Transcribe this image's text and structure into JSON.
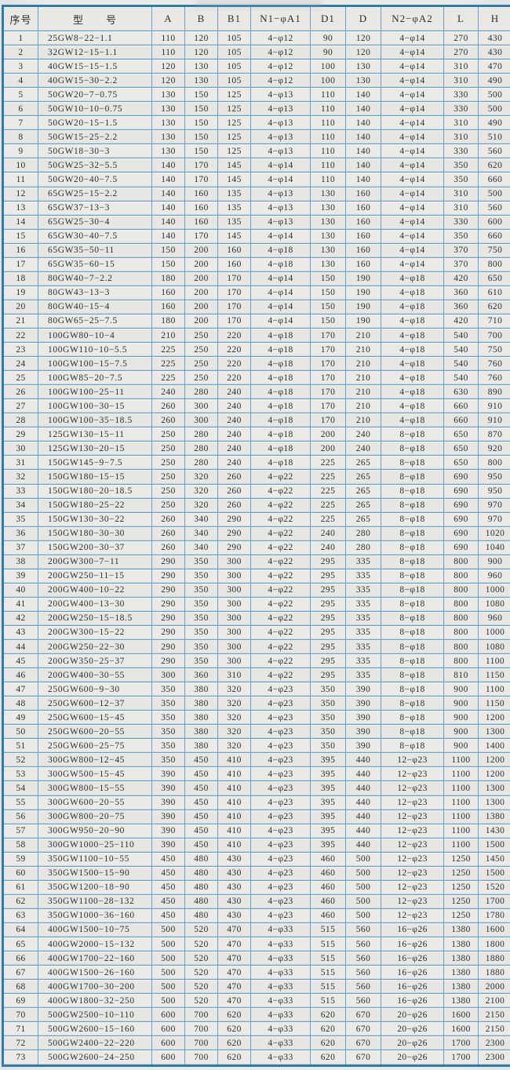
{
  "table": {
    "headers": [
      "序号",
      "型　　号",
      "A",
      "B",
      "B1",
      "N1−φA1",
      "D1",
      "D",
      "N2−φA2",
      "L",
      "H"
    ],
    "rows": [
      [
        "1",
        "25GW8−22−1.1",
        "110",
        "120",
        "105",
        "4−φ12",
        "90",
        "120",
        "4−φ14",
        "270",
        "430"
      ],
      [
        "2",
        "32GW12−15−1.1",
        "110",
        "120",
        "105",
        "4−φ12",
        "90",
        "120",
        "4−φ14",
        "270",
        "430"
      ],
      [
        "3",
        "40GW15−15−1.5",
        "120",
        "130",
        "105",
        "4−φ12",
        "100",
        "130",
        "4−φ14",
        "310",
        "470"
      ],
      [
        "4",
        "40GW15−30−2.2",
        "120",
        "130",
        "105",
        "4−φ12",
        "100",
        "130",
        "4−φ14",
        "310",
        "490"
      ],
      [
        "5",
        "50GW20−7−0.75",
        "130",
        "150",
        "125",
        "4−φ13",
        "110",
        "140",
        "4−φ14",
        "330",
        "500"
      ],
      [
        "6",
        "50GW10−10−0.75",
        "130",
        "150",
        "125",
        "4−φ13",
        "110",
        "140",
        "4−φ14",
        "330",
        "500"
      ],
      [
        "7",
        "50GW20−15−1.5",
        "130",
        "150",
        "125",
        "4−φ13",
        "110",
        "140",
        "4−φ14",
        "310",
        "490"
      ],
      [
        "8",
        "50GW15−25−2.2",
        "130",
        "150",
        "125",
        "4−φ13",
        "110",
        "140",
        "4−φ14",
        "310",
        "510"
      ],
      [
        "9",
        "50GW18−30−3",
        "130",
        "150",
        "125",
        "4−φ13",
        "110",
        "140",
        "4−φ14",
        "330",
        "560"
      ],
      [
        "10",
        "50GW25−32−5.5",
        "140",
        "170",
        "145",
        "4−φ14",
        "110",
        "140",
        "4−φ14",
        "350",
        "620"
      ],
      [
        "11",
        "50GW20−40−7.5",
        "140",
        "170",
        "145",
        "4−φ14",
        "110",
        "140",
        "4−φ14",
        "350",
        "660"
      ],
      [
        "12",
        "65GW25−15−2.2",
        "140",
        "160",
        "135",
        "4−φ13",
        "130",
        "160",
        "4−φ14",
        "310",
        "500"
      ],
      [
        "13",
        "65GW37−13−3",
        "140",
        "160",
        "135",
        "4−φ13",
        "130",
        "160",
        "4−φ14",
        "310",
        "560"
      ],
      [
        "14",
        "65GW25−30−4",
        "140",
        "160",
        "135",
        "4−φ13",
        "130",
        "160",
        "4−φ14",
        "330",
        "600"
      ],
      [
        "15",
        "65GW30−40−7.5",
        "140",
        "170",
        "145",
        "4−φ14",
        "130",
        "160",
        "4−φ14",
        "350",
        "660"
      ],
      [
        "16",
        "65GW35−50−11",
        "150",
        "200",
        "160",
        "4−φ18",
        "130",
        "160",
        "4−φ14",
        "370",
        "750"
      ],
      [
        "17",
        "65GW35−60−15",
        "150",
        "200",
        "160",
        "4−φ18",
        "130",
        "160",
        "4−φ14",
        "370",
        "800"
      ],
      [
        "18",
        "80GW40−7−2.2",
        "180",
        "200",
        "170",
        "4−φ14",
        "150",
        "190",
        "4−φ18",
        "420",
        "650"
      ],
      [
        "19",
        "80GW43−13−3",
        "160",
        "200",
        "170",
        "4−φ14",
        "150",
        "190",
        "4−φ18",
        "360",
        "610"
      ],
      [
        "20",
        "80GW40−15−4",
        "160",
        "200",
        "170",
        "4−φ14",
        "150",
        "190",
        "4−φ18",
        "360",
        "620"
      ],
      [
        "21",
        "80GW65−25−7.5",
        "180",
        "200",
        "170",
        "4−φ14",
        "150",
        "190",
        "4−φ18",
        "420",
        "710"
      ],
      [
        "22",
        "100GW80−10−4",
        "210",
        "250",
        "220",
        "4−φ18",
        "170",
        "210",
        "4−φ18",
        "540",
        "700"
      ],
      [
        "23",
        "100GW110−10−5.5",
        "225",
        "250",
        "220",
        "4−φ18",
        "170",
        "210",
        "4−φ18",
        "540",
        "750"
      ],
      [
        "24",
        "100GW100−15−7.5",
        "225",
        "250",
        "220",
        "4−φ18",
        "170",
        "210",
        "4−φ18",
        "540",
        "760"
      ],
      [
        "25",
        "100GW85−20−7.5",
        "225",
        "250",
        "220",
        "4−φ18",
        "170",
        "210",
        "4−φ18",
        "540",
        "760"
      ],
      [
        "26",
        "100GW100−25−11",
        "240",
        "280",
        "240",
        "4−φ18",
        "170",
        "210",
        "4−φ18",
        "630",
        "890"
      ],
      [
        "27",
        "100GW100−30−15",
        "260",
        "300",
        "240",
        "4−φ18",
        "170",
        "210",
        "4−φ18",
        "660",
        "910"
      ],
      [
        "28",
        "100GW100−35−18.5",
        "260",
        "300",
        "240",
        "4−φ18",
        "170",
        "210",
        "4−φ18",
        "660",
        "910"
      ],
      [
        "29",
        "125GW130−15−11",
        "250",
        "280",
        "240",
        "4−φ18",
        "200",
        "240",
        "8−φ18",
        "650",
        "870"
      ],
      [
        "30",
        "125GW130−20−15",
        "250",
        "280",
        "240",
        "4−φ18",
        "200",
        "240",
        "8−φ18",
        "650",
        "920"
      ],
      [
        "31",
        "150GW145−9−7.5",
        "250",
        "280",
        "240",
        "4−φ18",
        "225",
        "265",
        "8−φ18",
        "650",
        "800"
      ],
      [
        "32",
        "150GW180−15−15",
        "250",
        "320",
        "260",
        "4−φ22",
        "225",
        "265",
        "8−φ18",
        "690",
        "950"
      ],
      [
        "33",
        "150GW180−20−18.5",
        "250",
        "320",
        "260",
        "4−φ22",
        "225",
        "265",
        "8−φ18",
        "690",
        "950"
      ],
      [
        "34",
        "150GW180−25−22",
        "250",
        "320",
        "260",
        "4−φ22",
        "225",
        "265",
        "8−φ18",
        "690",
        "970"
      ],
      [
        "35",
        "150GW130−30−22",
        "260",
        "340",
        "290",
        "4−φ22",
        "225",
        "265",
        "8−φ18",
        "690",
        "970"
      ],
      [
        "36",
        "150GW180−30−30",
        "260",
        "340",
        "290",
        "4−φ22",
        "240",
        "280",
        "8−φ18",
        "690",
        "1020"
      ],
      [
        "37",
        "150GW200−30−37",
        "260",
        "340",
        "290",
        "4−φ22",
        "240",
        "280",
        "8−φ18",
        "690",
        "1040"
      ],
      [
        "38",
        "200GW300−7−11",
        "290",
        "350",
        "300",
        "4−φ22",
        "295",
        "335",
        "8−φ18",
        "800",
        "900"
      ],
      [
        "39",
        "200GW250−11−15",
        "290",
        "350",
        "300",
        "4−φ22",
        "295",
        "335",
        "8−φ18",
        "800",
        "960"
      ],
      [
        "40",
        "200GW400−10−22",
        "290",
        "350",
        "300",
        "4−φ22",
        "295",
        "335",
        "8−φ18",
        "800",
        "1000"
      ],
      [
        "41",
        "200GW400−13−30",
        "290",
        "350",
        "300",
        "4−φ22",
        "295",
        "335",
        "8−φ18",
        "800",
        "1080"
      ],
      [
        "42",
        "200GW250−15−18.5",
        "290",
        "350",
        "300",
        "4−φ22",
        "295",
        "335",
        "8−φ18",
        "800",
        "960"
      ],
      [
        "43",
        "200GW300−15−22",
        "290",
        "350",
        "300",
        "4−φ22",
        "295",
        "335",
        "8−φ18",
        "800",
        "1000"
      ],
      [
        "44",
        "200GW250−22−30",
        "290",
        "350",
        "300",
        "4−φ22",
        "295",
        "335",
        "8−φ18",
        "800",
        "1080"
      ],
      [
        "45",
        "200GW350−25−37",
        "290",
        "350",
        "300",
        "4−φ22",
        "295",
        "335",
        "8−φ18",
        "800",
        "1100"
      ],
      [
        "46",
        "200GW400−30−55",
        "300",
        "360",
        "310",
        "4−φ22",
        "295",
        "335",
        "8−φ18",
        "810",
        "1150"
      ],
      [
        "47",
        "250GW600−9−30",
        "350",
        "380",
        "320",
        "4−φ23",
        "350",
        "390",
        "8−φ18",
        "900",
        "1100"
      ],
      [
        "48",
        "250GW600−12−37",
        "350",
        "380",
        "320",
        "4−φ23",
        "350",
        "390",
        "8−φ18",
        "900",
        "1150"
      ],
      [
        "49",
        "250GW600−15−45",
        "350",
        "380",
        "320",
        "4−φ23",
        "350",
        "390",
        "8−φ18",
        "900",
        "1200"
      ],
      [
        "50",
        "250GW600−20−55",
        "350",
        "380",
        "320",
        "4−φ23",
        "350",
        "390",
        "8−φ18",
        "900",
        "1300"
      ],
      [
        "51",
        "250GW600−25−75",
        "350",
        "380",
        "320",
        "4−φ23",
        "350",
        "390",
        "8−φ18",
        "900",
        "1400"
      ],
      [
        "52",
        "300GW800−12−45",
        "350",
        "450",
        "410",
        "4−φ23",
        "395",
        "440",
        "12−φ23",
        "1100",
        "1200"
      ],
      [
        "53",
        "300GW500−15−45",
        "390",
        "450",
        "410",
        "4−φ23",
        "395",
        "440",
        "12−φ23",
        "1100",
        "1200"
      ],
      [
        "54",
        "300GW800−15−55",
        "390",
        "450",
        "410",
        "4−φ23",
        "395",
        "440",
        "12−φ23",
        "1100",
        "1300"
      ],
      [
        "55",
        "300GW600−20−55",
        "390",
        "450",
        "410",
        "4−φ23",
        "395",
        "440",
        "12−φ23",
        "1100",
        "1300"
      ],
      [
        "56",
        "300GW800−20−75",
        "390",
        "450",
        "410",
        "4−φ23",
        "395",
        "440",
        "12−φ23",
        "1100",
        "1380"
      ],
      [
        "57",
        "300GW950−20−90",
        "390",
        "450",
        "410",
        "4−φ23",
        "395",
        "440",
        "12−φ23",
        "1100",
        "1430"
      ],
      [
        "58",
        "300GW1000−25−110",
        "390",
        "450",
        "410",
        "4−φ23",
        "395",
        "440",
        "12−φ23",
        "1100",
        "1500"
      ],
      [
        "59",
        "350GW1100−10−55",
        "450",
        "480",
        "430",
        "4−φ23",
        "460",
        "500",
        "12−φ23",
        "1250",
        "1450"
      ],
      [
        "60",
        "350GW1500−15−90",
        "450",
        "480",
        "430",
        "4−φ23",
        "460",
        "500",
        "12−φ23",
        "1250",
        "1500"
      ],
      [
        "61",
        "350GW1200−18−90",
        "450",
        "480",
        "430",
        "4−φ23",
        "460",
        "500",
        "12−φ23",
        "1250",
        "1520"
      ],
      [
        "62",
        "350GW1100−28−132",
        "450",
        "480",
        "430",
        "4−φ23",
        "460",
        "500",
        "12−φ23",
        "1250",
        "1700"
      ],
      [
        "63",
        "350GW1000−36−160",
        "450",
        "480",
        "430",
        "4−φ23",
        "460",
        "500",
        "12−φ23",
        "1250",
        "1780"
      ],
      [
        "64",
        "400GW1500−10−75",
        "500",
        "520",
        "470",
        "4−φ33",
        "515",
        "560",
        "16−φ26",
        "1380",
        "1600"
      ],
      [
        "65",
        "400GW2000−15−132",
        "500",
        "520",
        "470",
        "4−φ33",
        "515",
        "560",
        "16−φ26",
        "1380",
        "1800"
      ],
      [
        "66",
        "400GW1700−22−160",
        "500",
        "520",
        "470",
        "4−φ33",
        "515",
        "560",
        "16−φ26",
        "1380",
        "1880"
      ],
      [
        "67",
        "400GW1500−26−160",
        "500",
        "520",
        "470",
        "4−φ33",
        "515",
        "560",
        "16−φ26",
        "1380",
        "1880"
      ],
      [
        "68",
        "400GW1700−30−200",
        "500",
        "520",
        "470",
        "4−φ33",
        "515",
        "560",
        "16−φ26",
        "1380",
        "2000"
      ],
      [
        "69",
        "400GW1800−32−250",
        "500",
        "520",
        "470",
        "4−φ33",
        "515",
        "560",
        "16−φ26",
        "1380",
        "2100"
      ],
      [
        "70",
        "500GW2500−10−110",
        "600",
        "700",
        "620",
        "4−φ33",
        "620",
        "670",
        "20−φ26",
        "1600",
        "2150"
      ],
      [
        "71",
        "500GW2600−15−160",
        "600",
        "700",
        "620",
        "4−φ33",
        "620",
        "670",
        "20−φ26",
        "1600",
        "2150"
      ],
      [
        "72",
        "500GW2400−22−220",
        "600",
        "700",
        "620",
        "4−φ33",
        "620",
        "670",
        "20−φ26",
        "1700",
        "2300"
      ],
      [
        "73",
        "500GW2600−24−250",
        "600",
        "700",
        "620",
        "4−φ33",
        "620",
        "670",
        "20−φ26",
        "1700",
        "2300"
      ]
    ]
  },
  "colors": {
    "outer_border": "#2f7cab",
    "grid_line": "#6aa2c6",
    "cell_bg": "#eae9e6",
    "text": "#2e2f32"
  }
}
